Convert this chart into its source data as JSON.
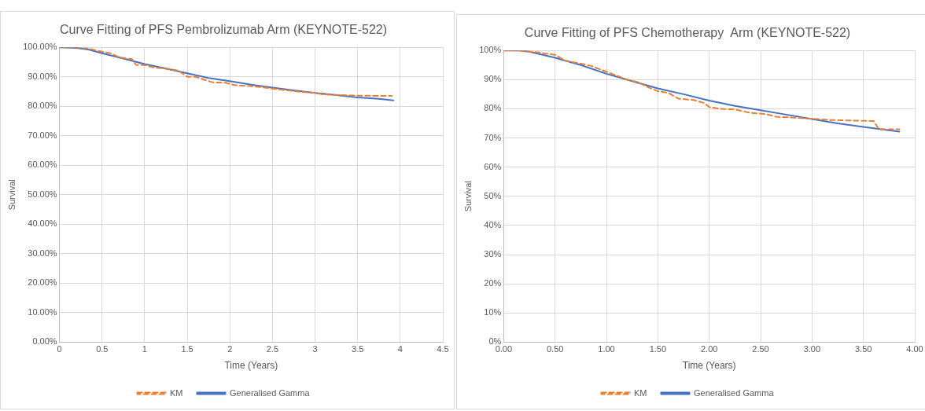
{
  "chart_data": [
    {
      "type": "line",
      "title": "Curve Fitting of PFS Pembrolizumab Arm (KEYNOTE-522)",
      "xlabel": "Time (Years)",
      "ylabel": "Survival",
      "legend": "bottom",
      "grid": true,
      "marker": "none",
      "xlim": [
        0,
        4.5
      ],
      "xticks": [
        0,
        0.5,
        1,
        1.5,
        2,
        2.5,
        3,
        3.5,
        4,
        4.5
      ],
      "ylim": [
        0,
        100
      ],
      "yticks": [
        {
          "value": 0,
          "label": "0.00%"
        },
        {
          "value": 10,
          "label": "10.00%"
        },
        {
          "value": 20,
          "label": "20.00%"
        },
        {
          "value": 30,
          "label": "30.00%"
        },
        {
          "value": 40,
          "label": "40.00%"
        },
        {
          "value": 50,
          "label": "50.00%"
        },
        {
          "value": 60,
          "label": "60.00%"
        },
        {
          "value": 70,
          "label": "70.00%"
        },
        {
          "value": 80,
          "label": "80.00%"
        },
        {
          "value": 90,
          "label": "90.00%"
        },
        {
          "value": 100,
          "label": "100.00%"
        }
      ],
      "series": [
        {
          "name": "KM",
          "color": "#ed7d31",
          "line_style": "dashed",
          "x": [
            0,
            0.2,
            0.35,
            0.5,
            0.6,
            0.7,
            0.85,
            0.9,
            1.0,
            1.1,
            1.3,
            1.4,
            1.5,
            1.6,
            1.7,
            1.8,
            1.95,
            2.05,
            2.3,
            2.5,
            2.8,
            3.0,
            3.1,
            3.5,
            3.9
          ],
          "values": [
            100,
            100,
            99.5,
            98.5,
            98,
            96.6,
            96,
            94,
            94,
            93.2,
            92.6,
            92,
            90,
            90,
            89,
            88.1,
            88,
            87.2,
            86.7,
            86,
            85,
            84.5,
            84,
            83.6,
            83.5
          ]
        },
        {
          "name": "Generalised Gamma",
          "color": "#4472c4",
          "line_style": "solid",
          "x": [
            0,
            0.2,
            0.35,
            0.5,
            0.75,
            1.0,
            1.25,
            1.5,
            1.75,
            2.0,
            2.25,
            2.5,
            2.75,
            3.0,
            3.25,
            3.5,
            3.75,
            3.92
          ],
          "values": [
            100,
            99.8,
            99.2,
            98,
            96.2,
            94.3,
            92.8,
            91.2,
            89.6,
            88.5,
            87.3,
            86.3,
            85.4,
            84.5,
            83.8,
            83,
            82.5,
            82
          ]
        }
      ]
    },
    {
      "type": "line",
      "title": "Curve Fitting of PFS Chemotherapy  Arm (KEYNOTE-522)",
      "xlabel": "Time (Years)",
      "ylabel": "Survival",
      "legend": "bottom",
      "grid": true,
      "marker": "none",
      "xlim": [
        0,
        4
      ],
      "xticks": [
        {
          "value": 0,
          "label": "0.00"
        },
        {
          "value": 0.5,
          "label": "0.50"
        },
        {
          "value": 1,
          "label": "1.00"
        },
        {
          "value": 1.5,
          "label": "1.50"
        },
        {
          "value": 2,
          "label": "2.00"
        },
        {
          "value": 2.5,
          "label": "2.50"
        },
        {
          "value": 3,
          "label": "3.00"
        },
        {
          "value": 3.5,
          "label": "3.50"
        },
        {
          "value": 4,
          "label": "4.00"
        }
      ],
      "ylim": [
        0,
        100
      ],
      "yticks": [
        {
          "value": 0,
          "label": "0%"
        },
        {
          "value": 10,
          "label": "10%"
        },
        {
          "value": 20,
          "label": "20%"
        },
        {
          "value": 30,
          "label": "30%"
        },
        {
          "value": 40,
          "label": "40%"
        },
        {
          "value": 50,
          "label": "50%"
        },
        {
          "value": 60,
          "label": "60%"
        },
        {
          "value": 70,
          "label": "70%"
        },
        {
          "value": 80,
          "label": "80%"
        },
        {
          "value": 90,
          "label": "90%"
        },
        {
          "value": 100,
          "label": "100%"
        }
      ],
      "series": [
        {
          "name": "KM",
          "color": "#ed7d31",
          "line_style": "dashed",
          "x": [
            0,
            0.15,
            0.2,
            0.35,
            0.4,
            0.5,
            0.6,
            0.75,
            0.85,
            1.0,
            1.2,
            1.3,
            1.4,
            1.5,
            1.6,
            1.7,
            1.85,
            1.95,
            2.0,
            2.1,
            2.25,
            2.4,
            2.55,
            2.65,
            2.9,
            3.05,
            3.15,
            3.35,
            3.6,
            3.65,
            3.85
          ],
          "values": [
            100,
            100,
            99.7,
            99.3,
            99,
            98.5,
            96.5,
            95.5,
            94.7,
            92.7,
            90,
            89.2,
            87.5,
            86,
            85.5,
            83.5,
            83,
            82,
            80.6,
            80,
            79.8,
            78.6,
            78.2,
            77.3,
            76.8,
            76.5,
            76.2,
            76,
            75.8,
            73,
            73
          ]
        },
        {
          "name": "Generalised Gamma",
          "color": "#4472c4",
          "line_style": "solid",
          "x": [
            0,
            0.15,
            0.25,
            0.5,
            0.75,
            1.0,
            1.25,
            1.5,
            1.75,
            2.0,
            2.25,
            2.5,
            2.75,
            3.0,
            3.25,
            3.5,
            3.85
          ],
          "values": [
            100,
            100,
            99.6,
            97.5,
            95,
            92,
            89.5,
            87,
            85,
            82.8,
            81,
            79.5,
            78,
            76.5,
            75,
            73.8,
            72.2
          ]
        }
      ]
    }
  ]
}
